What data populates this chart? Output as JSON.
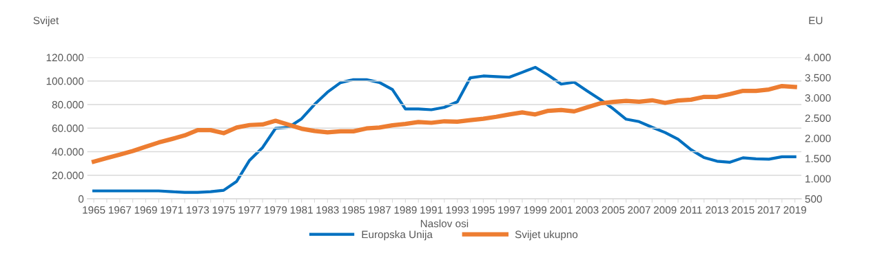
{
  "chart_data": {
    "type": "line",
    "categories": [
      "1965",
      null,
      "1967",
      null,
      "1969",
      null,
      "1971",
      null,
      "1973",
      null,
      "1975",
      null,
      "1977",
      null,
      "1979",
      null,
      "1981",
      null,
      "1983",
      null,
      "1985",
      null,
      "1987",
      null,
      "1989",
      null,
      "1991",
      null,
      "1993",
      null,
      "1995",
      null,
      "1997",
      null,
      "1999",
      null,
      "2001",
      null,
      "2003",
      null,
      "2005",
      null,
      "2007",
      null,
      "2009",
      null,
      "2011",
      null,
      "2013",
      null,
      "2015",
      null,
      "2017",
      null,
      "2019"
    ],
    "series": [
      {
        "name": "Europska Unija",
        "color": "#0070c0",
        "axis": "y2",
        "values": [
          695,
          695,
          695,
          695,
          695,
          695,
          675,
          660,
          660,
          675,
          710,
          930,
          1455,
          1770,
          2245,
          2270,
          2480,
          2835,
          3140,
          3375,
          3450,
          3450,
          3380,
          3205,
          2725,
          2725,
          2705,
          2765,
          2900,
          3495,
          3540,
          3525,
          3510,
          3630,
          3755,
          3560,
          3340,
          3385,
          3170,
          2960,
          2730,
          2470,
          2410,
          2270,
          2140,
          1975,
          1715,
          1520,
          1430,
          1405,
          1515,
          1490,
          1480,
          1540,
          1540
        ]
      },
      {
        "name": "Svijet ukupno",
        "color": "#ed7d31",
        "axis": "y",
        "values": [
          31500,
          34600,
          37500,
          40600,
          44200,
          47800,
          50700,
          53800,
          58300,
          58300,
          55700,
          60500,
          62600,
          63100,
          66200,
          62900,
          59500,
          57600,
          56400,
          57300,
          57300,
          59700,
          60500,
          62400,
          63600,
          65200,
          64500,
          65800,
          65500,
          66700,
          67900,
          69600,
          71600,
          73300,
          71600,
          74700,
          75400,
          74200,
          77600,
          81000,
          82200,
          83100,
          82400,
          83600,
          81400,
          83400,
          84100,
          86500,
          86500,
          88900,
          91600,
          91600,
          92800,
          95700,
          94900
        ]
      }
    ],
    "xlabel": "Naslov osi",
    "ylabel": "Svijet",
    "y2label": "EU",
    "ylim": [
      0,
      120000
    ],
    "yticks": [
      0,
      {
        "value": 20000,
        "label": "20.000"
      },
      {
        "value": 40000,
        "label": "40.000"
      },
      {
        "value": 60000,
        "label": "60.000"
      },
      {
        "value": 80000,
        "label": "80.000"
      },
      {
        "value": 100000,
        "label": "100.000"
      },
      {
        "value": 120000,
        "label": "120.000"
      }
    ],
    "y2lim": [
      500,
      4000
    ],
    "y2ticks": [
      500,
      {
        "value": 1000,
        "label": "1.000"
      },
      {
        "value": 1500,
        "label": "1.500"
      },
      {
        "value": 2000,
        "label": "2.000"
      },
      {
        "value": 2500,
        "label": "2.500"
      },
      {
        "value": 3000,
        "label": "3.000"
      },
      {
        "value": 3500,
        "label": "3.500"
      },
      {
        "value": 4000,
        "label": "4.000"
      }
    ],
    "grid": "y",
    "legend": "bottom",
    "marker": "none",
    "line_style": "solid"
  }
}
